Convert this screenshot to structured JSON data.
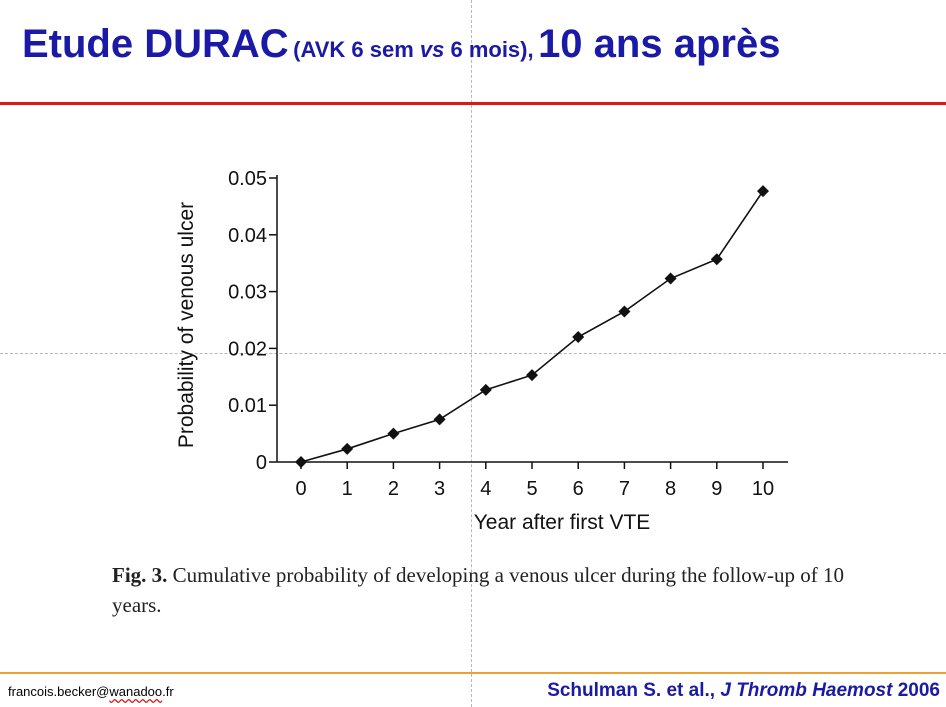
{
  "slide": {
    "title": {
      "part1": "Etude DURAC",
      "part2": "(AVK 6 sem ",
      "part3": "vs",
      "part4": " 6 mois),",
      "part5": "10 ans après"
    },
    "caption": {
      "fig": "Fig. 3.",
      "text": " Cumulative probability of developing a venous ulcer during the follow-up of 10 years."
    },
    "footer": {
      "email_user": "francois.becker",
      "email_at": "@",
      "email_domain": "wanadoo",
      "email_tld": ".fr",
      "cite_authors": "Schulman S. et al., ",
      "cite_journal": "J Thromb Haemost",
      "cite_year": " 2006"
    },
    "colors": {
      "title": "#1a1aa6",
      "top_rule": "#e0161b",
      "bottom_rule": "#f0a030",
      "series": "#111111"
    }
  },
  "chart_data": {
    "type": "line",
    "title": "",
    "xlabel": "Year after first VTE",
    "ylabel": "Probability of venous ulcer",
    "x": [
      0,
      1,
      2,
      3,
      4,
      5,
      6,
      7,
      8,
      9,
      10
    ],
    "series": [
      {
        "values": [
          0,
          0.0023,
          0.005,
          0.0075,
          0.0127,
          0.0153,
          0.022,
          0.0265,
          0.0323,
          0.0357,
          0.0477
        ]
      }
    ],
    "xticks": [
      0,
      1,
      2,
      3,
      4,
      5,
      6,
      7,
      8,
      9,
      10
    ],
    "yticks": [
      0,
      0.01,
      0.02,
      0.03,
      0.04,
      0.05
    ],
    "ytick_labels": [
      "0",
      "0.01",
      "0.02",
      "0.03",
      "0.04",
      "0.05"
    ],
    "xlim": [
      0,
      10
    ],
    "ylim": [
      0,
      0.05
    ],
    "marker": "diamond",
    "grid": false
  }
}
